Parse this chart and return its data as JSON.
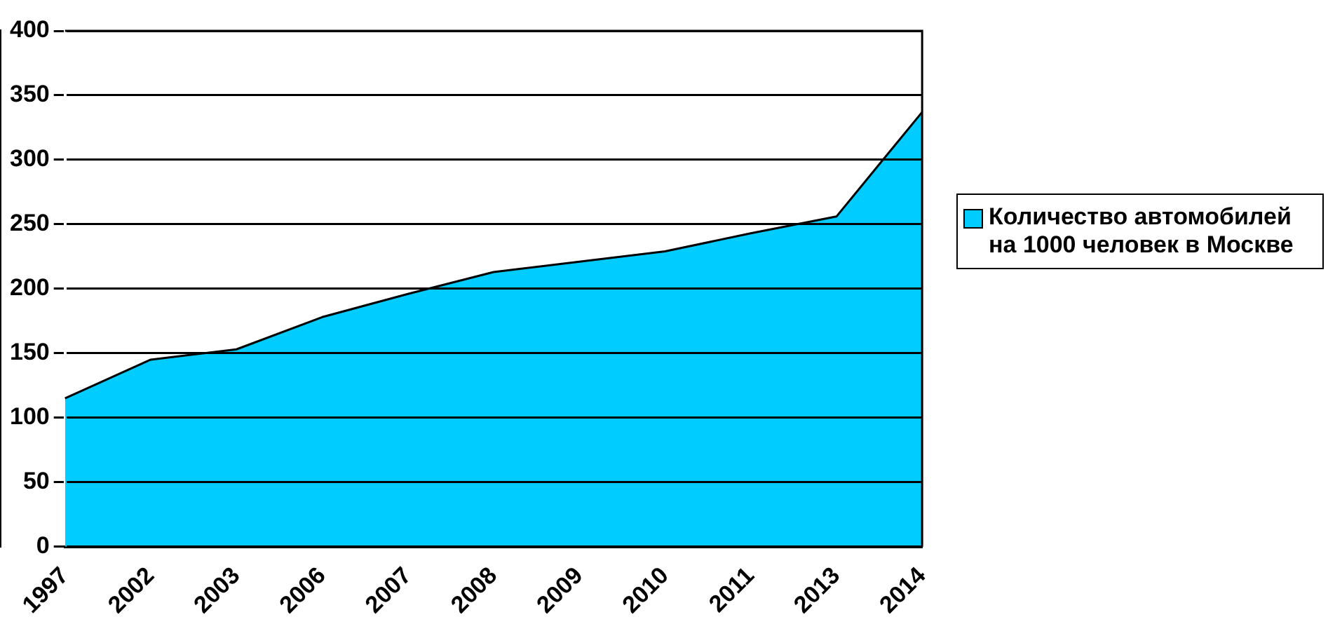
{
  "chart_data": {
    "type": "area",
    "categories": [
      "1997",
      "2002",
      "2003",
      "2006",
      "2007",
      "2008",
      "2009",
      "2010",
      "2011",
      "2013",
      "2014"
    ],
    "series": [
      {
        "name": "Количество автомобилей на 1000 человек в Москве",
        "color": "#00ccff",
        "values": [
          115,
          145,
          153,
          178,
          196,
          213,
          221,
          229,
          243,
          256,
          337
        ]
      }
    ],
    "ylim": [
      0,
      400
    ],
    "yticks": [
      0,
      50,
      100,
      150,
      200,
      250,
      300,
      350,
      400
    ],
    "grid": "y",
    "legend": "right"
  }
}
